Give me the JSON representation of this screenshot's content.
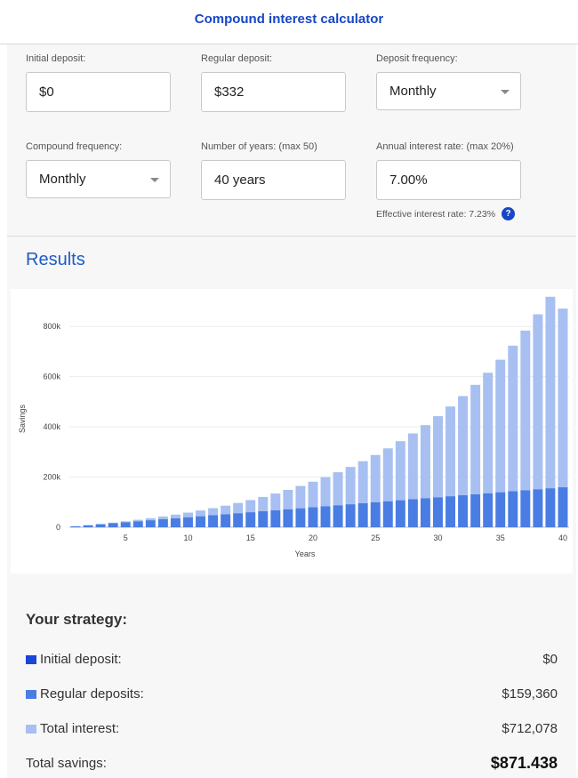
{
  "header": {
    "title": "Compound interest calculator"
  },
  "form": {
    "initial_deposit": {
      "label": "Initial deposit:",
      "value": "$0"
    },
    "regular_deposit": {
      "label": "Regular deposit:",
      "value": "$332"
    },
    "deposit_frequency": {
      "label": "Deposit frequency:",
      "value": "Monthly"
    },
    "compound_frequency": {
      "label": "Compound frequency:",
      "value": "Monthly"
    },
    "years": {
      "label": "Number of years: (max 50)",
      "value": "40 years"
    },
    "rate": {
      "label": "Annual interest rate: (max 20%)",
      "value": "7.00%"
    },
    "effective_rate": "Effective interest rate: 7.23%",
    "help_glyph": "?"
  },
  "results": {
    "title": "Results",
    "strategy_title": "Your strategy:",
    "rows": [
      {
        "label": "Initial deposit:",
        "value": "$0",
        "color": "#1a47d8"
      },
      {
        "label": "Regular deposits:",
        "value": "$159,360",
        "color": "#4a7de3"
      },
      {
        "label": "Total interest:",
        "value": "$712,078",
        "color": "#a7c0f1"
      }
    ],
    "total": {
      "label": "Total savings:",
      "value": "$871.438"
    }
  },
  "colors": {
    "accent": "#1746c6",
    "deposits": "#4a7de3",
    "interest": "#a7c0f1",
    "initial": "#1a47d8"
  },
  "chart_data": {
    "type": "bar",
    "stacked": true,
    "xlabel": "Years",
    "ylabel": "Savings",
    "ylim": [
      0,
      900000
    ],
    "yticks": [
      0,
      200000,
      400000,
      600000,
      800000
    ],
    "ytick_labels": [
      "0",
      "200k",
      "400k",
      "600k",
      "800k"
    ],
    "xtick_labels": [
      "5",
      "10",
      "15",
      "20",
      "25",
      "30",
      "35",
      "40"
    ],
    "xtick_values": [
      5,
      10,
      15,
      20,
      25,
      30,
      35,
      40
    ],
    "categories": [
      1,
      2,
      3,
      4,
      5,
      6,
      7,
      8,
      9,
      10,
      11,
      12,
      13,
      14,
      15,
      16,
      17,
      18,
      19,
      20,
      21,
      22,
      23,
      24,
      25,
      26,
      27,
      28,
      29,
      30,
      31,
      32,
      33,
      34,
      35,
      36,
      37,
      38,
      39,
      40
    ],
    "series": [
      {
        "name": "Regular deposits",
        "values": [
          3984,
          7968,
          11952,
          15936,
          19920,
          23904,
          27888,
          31872,
          35856,
          39840,
          43824,
          47808,
          51792,
          55776,
          59760,
          63744,
          67728,
          71712,
          75696,
          79680,
          83664,
          87648,
          91632,
          95616,
          99600,
          103584,
          107568,
          111552,
          115536,
          119520,
          123504,
          127488,
          131472,
          135456,
          139440,
          143424,
          147408,
          151392,
          155376,
          159360
        ]
      },
      {
        "name": "Total interest",
        "values": [
          135,
          568,
          1347,
          2475,
          3989,
          5917,
          8297,
          11159,
          14544,
          18500,
          23073,
          28315,
          34286,
          41039,
          48633,
          57141,
          66626,
          77168,
          88852,
          101764,
          115996,
          131659,
          148853,
          167694,
          188309,
          210837,
          235432,
          262246,
          291445,
          323216,
          357760,
          395288,
          436030,
          480236,
          528171,
          580117,
          636382,
          697295,
          763205,
          712078
        ]
      }
    ]
  }
}
